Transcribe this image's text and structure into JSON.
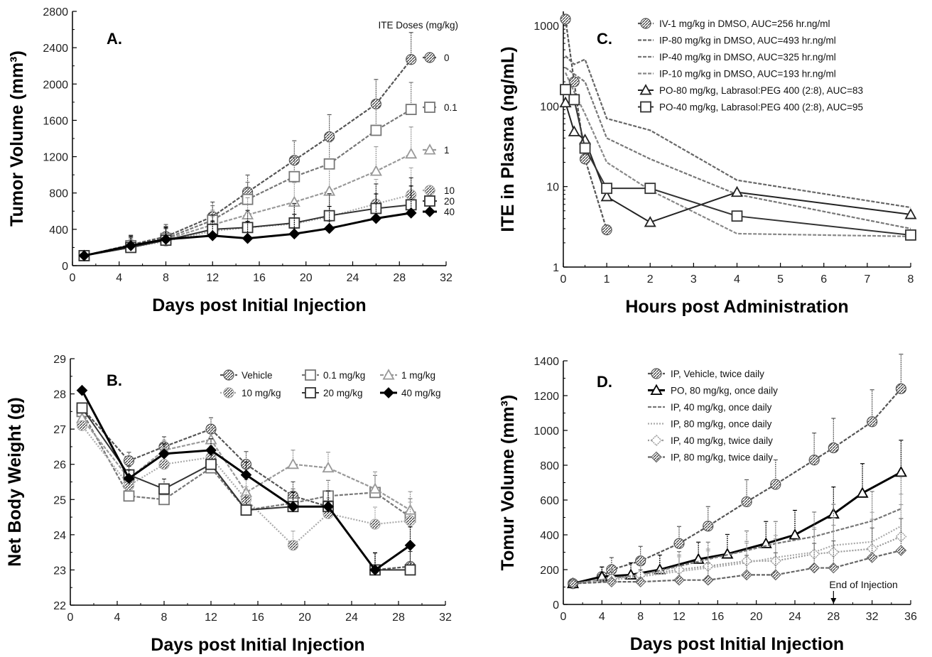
{
  "chart_data": [
    {
      "panel_label": "A.",
      "type": "line",
      "xlabel": "Days post Initial Injection",
      "ylabel": "Tumor Volume (mm³)",
      "xlim": [
        0,
        32
      ],
      "ylim": [
        0,
        2800
      ],
      "xticks": [
        0,
        4,
        8,
        12,
        16,
        20,
        24,
        28,
        32
      ],
      "yticks": [
        0,
        400,
        800,
        1200,
        1600,
        2000,
        2400,
        2800
      ],
      "x": [
        1,
        5,
        8,
        12,
        15,
        19,
        22,
        26,
        29
      ],
      "legend_title": "ITE Doses (mg/kg)",
      "legend": "inline-right",
      "series": [
        {
          "name": "0",
          "values": [
            110,
            230,
            320,
            540,
            810,
            1160,
            1420,
            1780,
            2270
          ],
          "color": "#555555",
          "marker": "circle",
          "style": "hatch"
        },
        {
          "name": "0.1",
          "values": [
            110,
            220,
            300,
            500,
            730,
            980,
            1120,
            1490,
            1720
          ],
          "color": "#777777",
          "marker": "square",
          "style": "hatch"
        },
        {
          "name": "1",
          "values": [
            110,
            210,
            290,
            450,
            560,
            700,
            820,
            1040,
            1230
          ],
          "color": "#999999",
          "marker": "triangle",
          "style": "hatch"
        },
        {
          "name": "10",
          "values": [
            110,
            200,
            270,
            380,
            420,
            460,
            540,
            680,
            780
          ],
          "color": "#aaaaaa",
          "marker": "circle",
          "style": "dotted"
        },
        {
          "name": "20",
          "values": [
            110,
            200,
            280,
            400,
            420,
            470,
            550,
            630,
            670
          ],
          "color": "#333333",
          "marker": "square",
          "style": "solid"
        },
        {
          "name": "40",
          "values": [
            110,
            220,
            290,
            330,
            300,
            350,
            410,
            520,
            580
          ],
          "color": "#000000",
          "marker": "diamond",
          "style": "solid-bold"
        }
      ]
    },
    {
      "panel_label": "B.",
      "type": "line",
      "xlabel": "Days post Initial Injection",
      "ylabel": "Net Body Weight (g)",
      "xlim": [
        0,
        32
      ],
      "ylim": [
        22,
        29
      ],
      "xticks": [
        0,
        4,
        8,
        12,
        16,
        20,
        24,
        28,
        32
      ],
      "yticks": [
        22,
        23,
        24,
        25,
        26,
        27,
        28,
        29
      ],
      "x": [
        1,
        5,
        8,
        12,
        15,
        19,
        22,
        26,
        29
      ],
      "legend": "top-right",
      "series": [
        {
          "name": "Vehicle",
          "values": [
            27.6,
            26.1,
            26.5,
            27.0,
            26.0,
            25.1,
            24.8,
            23.0,
            23.1
          ],
          "color": "#555555",
          "marker": "circle",
          "style": "hatch"
        },
        {
          "name": "0.1 mg/kg",
          "values": [
            27.5,
            25.1,
            25.0,
            25.9,
            24.7,
            24.9,
            25.1,
            25.2,
            24.5
          ],
          "color": "#777777",
          "marker": "square",
          "style": "hatch"
        },
        {
          "name": "1 mg/kg",
          "values": [
            27.3,
            25.6,
            26.4,
            26.7,
            25.2,
            26.0,
            25.9,
            25.3,
            24.7
          ],
          "color": "#999999",
          "marker": "triangle",
          "style": "hatch"
        },
        {
          "name": "10 mg/kg",
          "values": [
            27.1,
            25.4,
            26.0,
            26.2,
            25.0,
            23.7,
            24.6,
            24.3,
            24.4
          ],
          "color": "#aaaaaa",
          "marker": "circle",
          "style": "dotted"
        },
        {
          "name": "20 mg/kg",
          "values": [
            27.6,
            25.7,
            25.3,
            26.0,
            24.7,
            24.8,
            24.8,
            23.0,
            23.0
          ],
          "color": "#333333",
          "marker": "square",
          "style": "solid"
        },
        {
          "name": "40 mg/kg",
          "values": [
            28.1,
            25.6,
            26.3,
            26.4,
            25.7,
            24.8,
            24.8,
            23.0,
            23.7
          ],
          "color": "#000000",
          "marker": "diamond",
          "style": "solid-bold"
        }
      ]
    },
    {
      "panel_label": "C.",
      "type": "line",
      "yscale": "log",
      "xlabel": "Hours post Administration",
      "ylabel": "ITE in Plasma (ng/mL)",
      "xlim": [
        0,
        8
      ],
      "ylim": [
        1,
        1500
      ],
      "xticks": [
        0,
        1,
        2,
        3,
        4,
        5,
        6,
        7,
        8
      ],
      "yticks": [
        1,
        10,
        100,
        1000
      ],
      "legend": "top-right",
      "series": [
        {
          "name": "IV-1 mg/kg in DMSO, AUC=256 hr.ng/ml",
          "x": [
            0.05,
            0.25,
            0.5,
            1
          ],
          "values": [
            1200,
            200,
            22,
            2.9
          ],
          "color": "#555555",
          "marker": "circle",
          "style": "hatch"
        },
        {
          "name": "IP-80  mg/kg in DMSO, AUC=493 hr.ng/ml",
          "x": [
            0.05,
            0.25,
            0.5,
            1,
            2,
            4,
            8
          ],
          "values": [
            420,
            330,
            380,
            70,
            50,
            12,
            5.5
          ],
          "color": "#666666",
          "marker": "none",
          "style": "hatch"
        },
        {
          "name": "IP-40 mg/kg in DMSO, AUC=325 hr.ng/ml",
          "x": [
            0.05,
            0.25,
            0.5,
            1,
            2,
            4,
            8
          ],
          "values": [
            300,
            250,
            200,
            40,
            22,
            8,
            3
          ],
          "color": "#777777",
          "marker": "none",
          "style": "hatch"
        },
        {
          "name": "IP-10 mg/kg in DMSO, AUC=193 hr.ng/ml",
          "x": [
            0.05,
            0.25,
            0.5,
            1,
            2,
            4,
            8
          ],
          "values": [
            260,
            150,
            80,
            20,
            9,
            2.6,
            2.4
          ],
          "color": "#888888",
          "marker": "none",
          "style": "hatch"
        },
        {
          "name": "PO-80 mg/kg, Labrasol:PEG 400 (2:8), AUC=83",
          "x": [
            0.05,
            0.25,
            0.5,
            1,
            2,
            4,
            8
          ],
          "values": [
            110,
            48,
            38,
            7.5,
            3.6,
            8.5,
            4.5
          ],
          "color": "#222222",
          "marker": "triangle",
          "style": "solid"
        },
        {
          "name": "PO-40 mg/kg, Labrasol:PEG 400 (2:8), AUC=95",
          "x": [
            0.05,
            0.25,
            0.5,
            1,
            2,
            4,
            8
          ],
          "values": [
            160,
            120,
            30,
            9.5,
            9.5,
            4.3,
            2.5
          ],
          "color": "#333333",
          "marker": "square",
          "style": "solid"
        }
      ]
    },
    {
      "panel_label": "D.",
      "type": "line",
      "xlabel": "Days post Initial Injection",
      "ylabel": "Tomur Volume (mm³)",
      "xlim": [
        0,
        36
      ],
      "ylim": [
        0,
        1400
      ],
      "xticks": [
        0,
        4,
        8,
        12,
        16,
        20,
        24,
        28,
        32,
        36
      ],
      "yticks": [
        0,
        200,
        400,
        600,
        800,
        1000,
        1200,
        1400
      ],
      "x": [
        1,
        5,
        8,
        12,
        15,
        19,
        22,
        26,
        28,
        33,
        35
      ],
      "legend": "top-left",
      "annotation": "End of Injection",
      "annotation_x": 28,
      "series": [
        {
          "name": "IP, Vehicle, twice daily",
          "x": [
            1,
            4,
            5,
            8,
            12,
            15,
            19,
            22,
            26,
            28,
            32,
            35
          ],
          "values": [
            120,
            160,
            200,
            250,
            350,
            450,
            590,
            690,
            830,
            900,
            1050,
            1240
          ],
          "color": "#555555",
          "marker": "circle",
          "style": "hatch"
        },
        {
          "name": "PO, 80 mg/kg, once daily",
          "x": [
            1,
            4,
            7,
            10,
            14,
            17,
            21,
            24,
            28,
            31,
            35
          ],
          "values": [
            120,
            160,
            170,
            200,
            260,
            290,
            350,
            400,
            520,
            640,
            760
          ],
          "color": "#000000",
          "marker": "triangle",
          "style": "solid-bold"
        },
        {
          "name": "IP, 40 mg/kg, once daily",
          "x": [
            1,
            5,
            8,
            12,
            15,
            19,
            22,
            26,
            28,
            32,
            35
          ],
          "values": [
            120,
            150,
            170,
            220,
            260,
            310,
            350,
            390,
            420,
            480,
            550
          ],
          "color": "#777777",
          "marker": "none",
          "style": "hatch"
        },
        {
          "name": "IP, 80 mg/kg, once daily",
          "x": [
            1,
            5,
            8,
            12,
            15,
            19,
            22,
            26,
            28,
            32,
            35
          ],
          "values": [
            120,
            140,
            160,
            190,
            210,
            240,
            270,
            300,
            340,
            360,
            450
          ],
          "color": "#aaaaaa",
          "marker": "none",
          "style": "dotted"
        },
        {
          "name": "IP, 40 mg/kg, twice daily",
          "x": [
            1,
            5,
            8,
            12,
            15,
            19,
            22,
            26,
            28,
            32,
            35
          ],
          "values": [
            120,
            150,
            170,
            200,
            220,
            250,
            250,
            290,
            300,
            320,
            390
          ],
          "color": "#999999",
          "marker": "diamond-open",
          "style": "dotted"
        },
        {
          "name": "IP, 80 mg/kg, twice daily",
          "x": [
            1,
            5,
            8,
            12,
            15,
            19,
            22,
            26,
            28,
            32,
            35
          ],
          "values": [
            120,
            130,
            130,
            140,
            140,
            170,
            170,
            210,
            210,
            270,
            310
          ],
          "color": "#666666",
          "marker": "diamond",
          "style": "hatch"
        }
      ]
    }
  ]
}
